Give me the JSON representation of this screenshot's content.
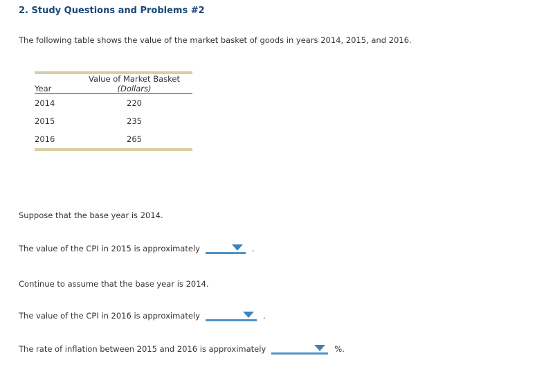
{
  "page": {
    "title": "2. Study Questions and Problems #2",
    "intro": "The following table shows the value of the market basket of goods in years 2014, 2015, and 2016."
  },
  "table": {
    "value_header": "Value of Market Basket",
    "unit_header": "(Dollars)",
    "year_header": "Year",
    "rows": [
      {
        "year": "2014",
        "value": "220"
      },
      {
        "year": "2015",
        "value": "235"
      },
      {
        "year": "2016",
        "value": "265"
      }
    ]
  },
  "questions": {
    "note1": "Suppose that the base year is 2014.",
    "q1": {
      "text": "The value of the CPI in 2015 is approximately",
      "suffix": ".",
      "dropdown_value": ""
    },
    "note2": "Continue to assume that the base year is 2014.",
    "q2": {
      "text": "The value of the CPI in 2016 is approximately",
      "suffix": ".",
      "dropdown_value": ""
    },
    "q3": {
      "text": "The rate of inflation between 2015 and 2016 is approximately",
      "suffix": "%.",
      "dropdown_value": ""
    }
  },
  "icons": {
    "dropdown_arrow": "chevron-down-triangle"
  },
  "colors": {
    "title_blue": "#1b4677",
    "body_text": "#333333",
    "table_accent_tan": "#d8cfa3",
    "table_header_rule": "#3c3c3c",
    "dropdown_underline_blue": "#4e92c6",
    "dropdown_triangle_blue": "#3a84bf"
  }
}
